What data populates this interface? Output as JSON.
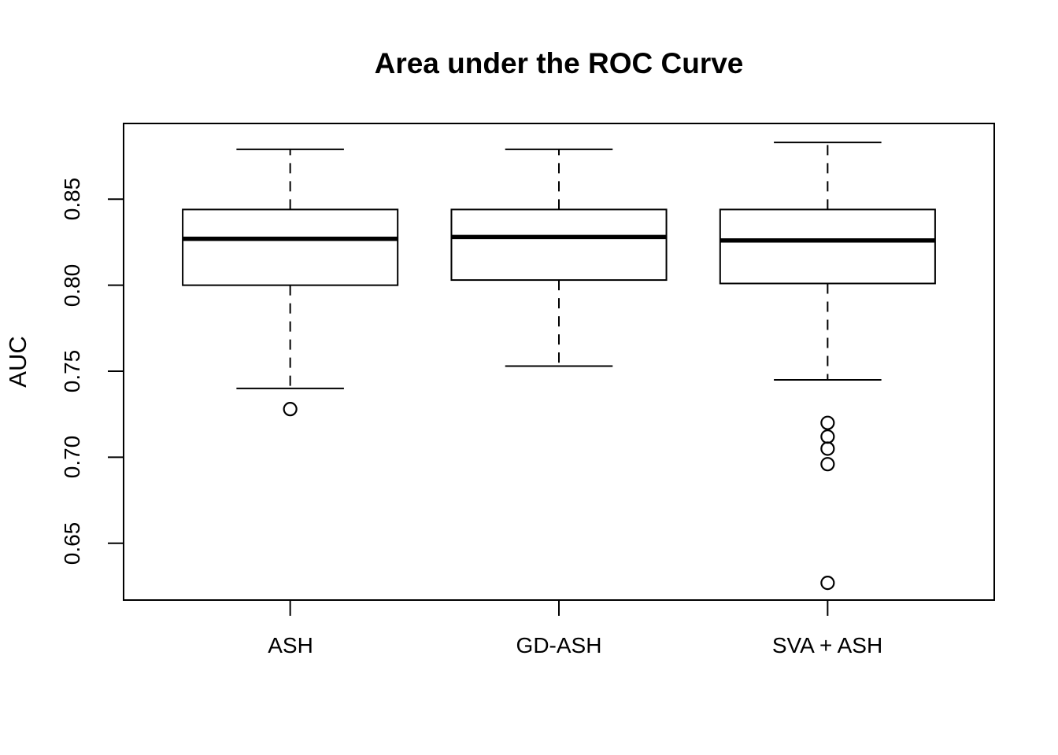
{
  "chart_data": {
    "type": "boxplot",
    "title": "Area under the ROC Curve",
    "xlabel": "",
    "ylabel": "AUC",
    "categories": [
      "ASH",
      "GD-ASH",
      "SVA + ASH"
    ],
    "yticks": [
      0.65,
      0.7,
      0.75,
      0.8,
      0.85
    ],
    "ytick_labels": [
      "0.65",
      "0.70",
      "0.75",
      "0.80",
      "0.85"
    ],
    "ylim": [
      0.617,
      0.894
    ],
    "grid": false,
    "legend": null,
    "colors": {
      "stroke": "#000000",
      "background": "#ffffff"
    },
    "series": [
      {
        "name": "ASH",
        "whisker_low": 0.74,
        "q1": 0.8,
        "median": 0.827,
        "q3": 0.844,
        "whisker_high": 0.879,
        "outliers": [
          0.728
        ]
      },
      {
        "name": "GD-ASH",
        "whisker_low": 0.753,
        "q1": 0.803,
        "median": 0.828,
        "q3": 0.844,
        "whisker_high": 0.879,
        "outliers": []
      },
      {
        "name": "SVA + ASH",
        "whisker_low": 0.745,
        "q1": 0.801,
        "median": 0.826,
        "q3": 0.844,
        "whisker_high": 0.883,
        "outliers": [
          0.72,
          0.712,
          0.705,
          0.696,
          0.627
        ]
      }
    ]
  }
}
